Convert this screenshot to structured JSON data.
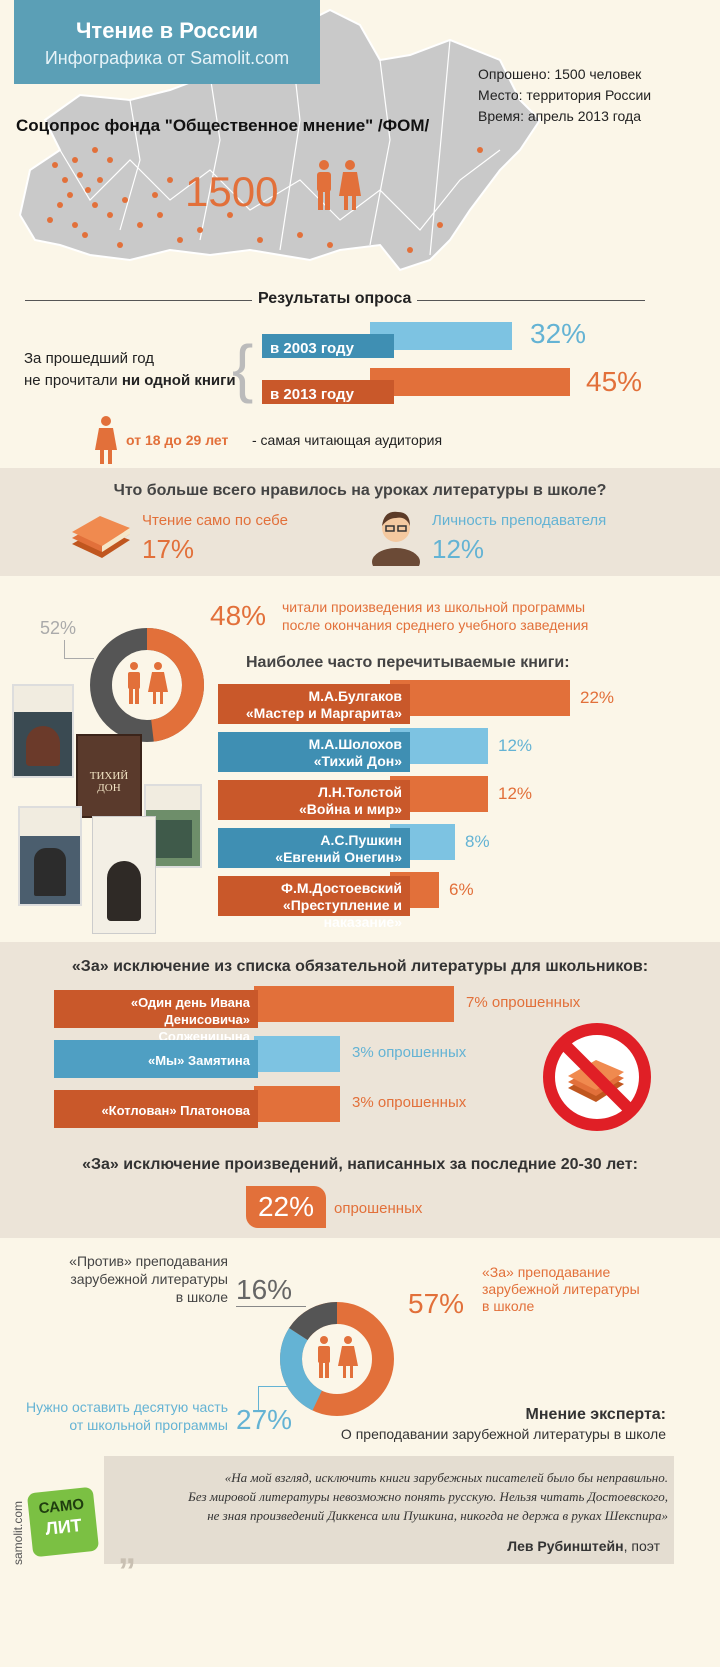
{
  "header": {
    "title": "Чтение в России",
    "subtitle": "Инфографика от Samolit.com",
    "survey_meta": [
      "Опрошено: 1500 человек",
      "Место: территория России",
      "Время: апрель 2013 года"
    ],
    "poll_title": "Соцопрос фонда \"Общественное мнение\" /ФОМ/",
    "respondents": "1500"
  },
  "results": {
    "heading": "Результаты опроса",
    "statement_line1": "За прошедший год",
    "statement_line2": "не прочитали",
    "statement_bold": "ни одной книги",
    "year2003_label": "в 2003 году",
    "year2003_value": "32%",
    "year2003_fraction": 0.32,
    "year2013_label": "в 2013 году",
    "year2013_value": "45%",
    "year2013_fraction": 0.45,
    "age_group": "от 18 до 29 лет",
    "age_note": "- самая читающая аудитория"
  },
  "school": {
    "question": "Что больше всего нравилось на уроках литературы в школе?",
    "option1_label": "Чтение само по себе",
    "option1_value": "17%",
    "option2_label": "Личность преподавателя",
    "option2_value": "12%"
  },
  "reread": {
    "pct_gray": "52%",
    "pct_orange": "48%",
    "donut_orange_fraction": 0.48,
    "text_line1": "читали произведения из школьной программы",
    "text_line2": "после окончания среднего учебного заведения",
    "books_heading": "Наиболее часто перечитываемые книги:",
    "cover_tikhiy_don": "ТИХИЙ ДОН",
    "books": [
      {
        "line1": "М.А.Булгаков",
        "line2": "«Мастер и Маргарита»",
        "value": "22%",
        "num": 22,
        "color": "#e2703a"
      },
      {
        "line1": "М.А.Шолохов",
        "line2": "«Тихий Дон»",
        "value": "12%",
        "num": 12,
        "color": "#64b3d4"
      },
      {
        "line1": "Л.Н.Толстой",
        "line2": "«Война и мир»",
        "value": "12%",
        "num": 12,
        "color": "#e2703a"
      },
      {
        "line1": "А.С.Пушкин",
        "line2": "«Евгений Онегин»",
        "value": "8%",
        "num": 8,
        "color": "#64b3d4"
      },
      {
        "line1": "Ф.М.Достоевский",
        "line2": "«Преступление и наказание»",
        "value": "6%",
        "num": 6,
        "color": "#e2703a"
      }
    ]
  },
  "exclusion": {
    "heading": "«За» исключение из списка обязательной литературы для школьников:",
    "items": [
      {
        "line1": "«Один день Ивана Денисовича»",
        "line2": "Солженицына",
        "value": "7% опрошенных",
        "num": 7,
        "color": "#e2703a"
      },
      {
        "line1": "«Мы» Замятина",
        "line2": "",
        "value": "3% опрошенных",
        "num": 3,
        "color": "#64b3d4"
      },
      {
        "line1": "«Котлован» Платонова",
        "line2": "",
        "value": "3% опрошенных",
        "num": 3,
        "color": "#e2703a"
      }
    ],
    "recent_heading": "«За» исключение произведений, написанных за последние 20-30 лет:",
    "recent_value": "22%",
    "recent_suffix": "опрошенных"
  },
  "foreign": {
    "against_line1": "«Против» преподавания",
    "against_line2": "зарубежной литературы",
    "against_line3": "в школе",
    "against_value": "16%",
    "against_fraction": 0.16,
    "for_line1": "«За» преподавание",
    "for_line2": "зарубежной литературы",
    "for_line3": "в школе",
    "for_value": "57%",
    "for_fraction": 0.57,
    "keep_line1": "Нужно оставить десятую часть",
    "keep_line2": "от школьной программы",
    "keep_value": "27%",
    "keep_fraction": 0.27,
    "expert_heading": "Мнение эксперта:",
    "expert_sub": "О преподавании зарубежной литературы в школе"
  },
  "quote": {
    "line1": "«На мой взгляд, исключить книги зарубежных писателей было бы неправильно.",
    "line2": "Без мировой литературы невозможно понять русскую. Нельзя читать Достоевского,",
    "line3": "не зная произведений Диккенса или Пушкина, никогда не держа в руках Шекспира»",
    "author": "Лев Рубинштейн",
    "author_role": ", поэт"
  },
  "footer": {
    "site": "samolit.com",
    "logo_top": "САМО",
    "logo_bottom": "ЛИТ"
  },
  "colors": {
    "orange": "#e2703a",
    "blue": "#64b3d4",
    "dark_gray": "#555555",
    "banner": "#5b9fb6",
    "band": "#ece4d8"
  }
}
